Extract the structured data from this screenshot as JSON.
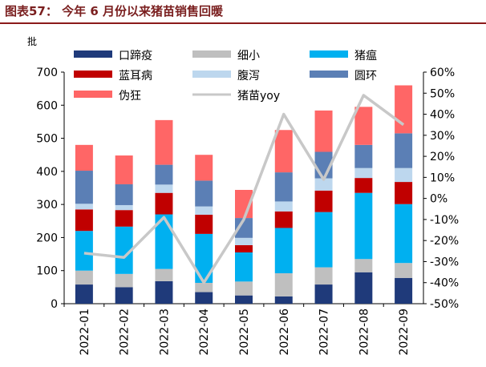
{
  "title": "图表57： 今年 6 月份以来猪苗销售回暖",
  "chart_data": {
    "type": "bar",
    "stacked": true,
    "unit_left": "批",
    "categories": [
      "2022-01",
      "2022-02",
      "2022-03",
      "2022-04",
      "2022-05",
      "2022-06",
      "2022-07",
      "2022-08",
      "2022-09"
    ],
    "y_left": {
      "min": 0,
      "max": 700,
      "ticks": [
        "0",
        "100",
        "200",
        "300",
        "400",
        "500",
        "600",
        "700"
      ]
    },
    "y_right": {
      "min": -50,
      "max": 60,
      "ticks": [
        "-50%",
        "-40%",
        "-30%",
        "-20%",
        "-10%",
        "0%",
        "10%",
        "20%",
        "30%",
        "40%",
        "50%",
        "60%"
      ]
    },
    "grid": false,
    "legend_position": "top",
    "series": [
      {
        "name": "口蹄疫",
        "color": "#1f3a7a",
        "values": [
          58,
          50,
          68,
          35,
          25,
          22,
          58,
          95,
          78
        ]
      },
      {
        "name": "细小",
        "color": "#bfbfbf",
        "values": [
          42,
          40,
          37,
          28,
          42,
          70,
          52,
          40,
          45
        ]
      },
      {
        "name": "猪瘟",
        "color": "#00b0f0",
        "values": [
          120,
          143,
          165,
          148,
          88,
          137,
          167,
          200,
          178
        ]
      },
      {
        "name": "蓝耳病",
        "color": "#c00000",
        "values": [
          65,
          50,
          65,
          58,
          22,
          50,
          65,
          45,
          67
        ]
      },
      {
        "name": "腹泻",
        "color": "#bdd7ee",
        "values": [
          17,
          15,
          25,
          25,
          22,
          30,
          37,
          30,
          42
        ]
      },
      {
        "name": "圆环",
        "color": "#5b7fb5",
        "values": [
          100,
          63,
          60,
          78,
          60,
          88,
          80,
          70,
          105
        ]
      },
      {
        "name": "伪狂",
        "color": "#ff6666",
        "values": [
          78,
          87,
          135,
          78,
          85,
          128,
          125,
          115,
          145
        ]
      }
    ],
    "line_series": {
      "name": "猪苗yoy",
      "axis": "right",
      "color": "#c8c8c8",
      "values": [
        -26,
        -28,
        -9,
        -40,
        -10,
        40,
        9,
        49,
        35
      ]
    }
  }
}
